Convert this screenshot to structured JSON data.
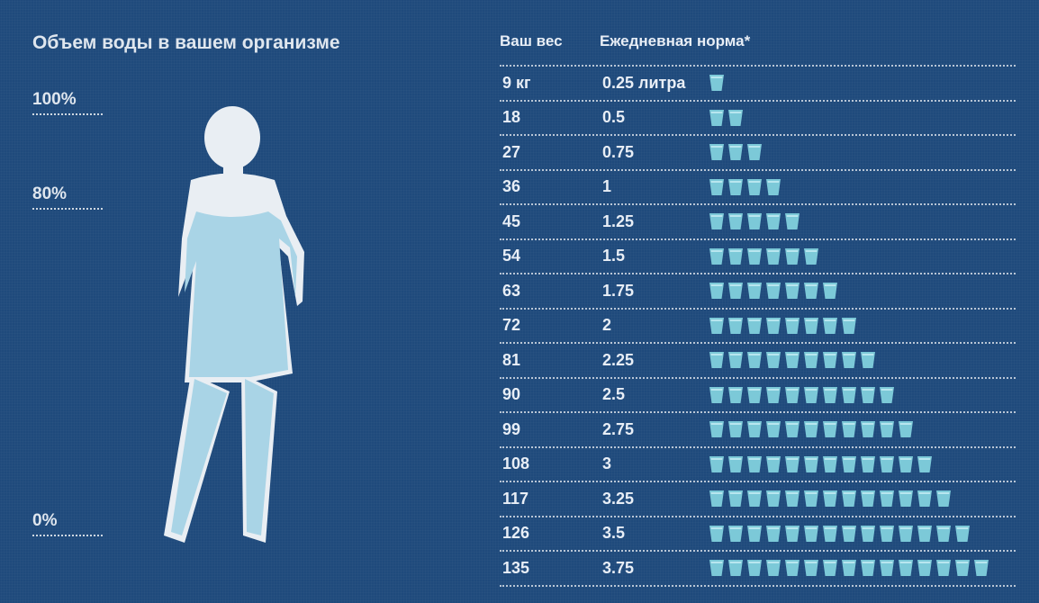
{
  "title": "Объем воды в вашем организме",
  "levels": {
    "top": "100%",
    "mid": "80%",
    "bottom": "0%"
  },
  "table": {
    "col_weight": "Ваш вес",
    "col_norm": "Ежедневная норма*",
    "rows": [
      {
        "weight": "9 кг",
        "liters": "0.25 литра",
        "cups": 1
      },
      {
        "weight": "18",
        "liters": "0.5",
        "cups": 2
      },
      {
        "weight": "27",
        "liters": "0.75",
        "cups": 3
      },
      {
        "weight": "36",
        "liters": "1",
        "cups": 4
      },
      {
        "weight": "45",
        "liters": "1.25",
        "cups": 5
      },
      {
        "weight": "54",
        "liters": "1.5",
        "cups": 6
      },
      {
        "weight": "63",
        "liters": "1.75",
        "cups": 7
      },
      {
        "weight": "72",
        "liters": "2",
        "cups": 8
      },
      {
        "weight": "81",
        "liters": "2.25",
        "cups": 9
      },
      {
        "weight": "90",
        "liters": "2.5",
        "cups": 10
      },
      {
        "weight": "99",
        "liters": "2.75",
        "cups": 11
      },
      {
        "weight": "108",
        "liters": "3",
        "cups": 12
      },
      {
        "weight": "117",
        "liters": "3.25",
        "cups": 13
      },
      {
        "weight": "126",
        "liters": "3.5",
        "cups": 14
      },
      {
        "weight": "135",
        "liters": "3.75",
        "cups": 15
      }
    ]
  },
  "colors": {
    "background": "#1f4a7c",
    "water": "#a9d4e6",
    "silhouette": "#e9eef3",
    "cup": "#7cc9d8"
  }
}
